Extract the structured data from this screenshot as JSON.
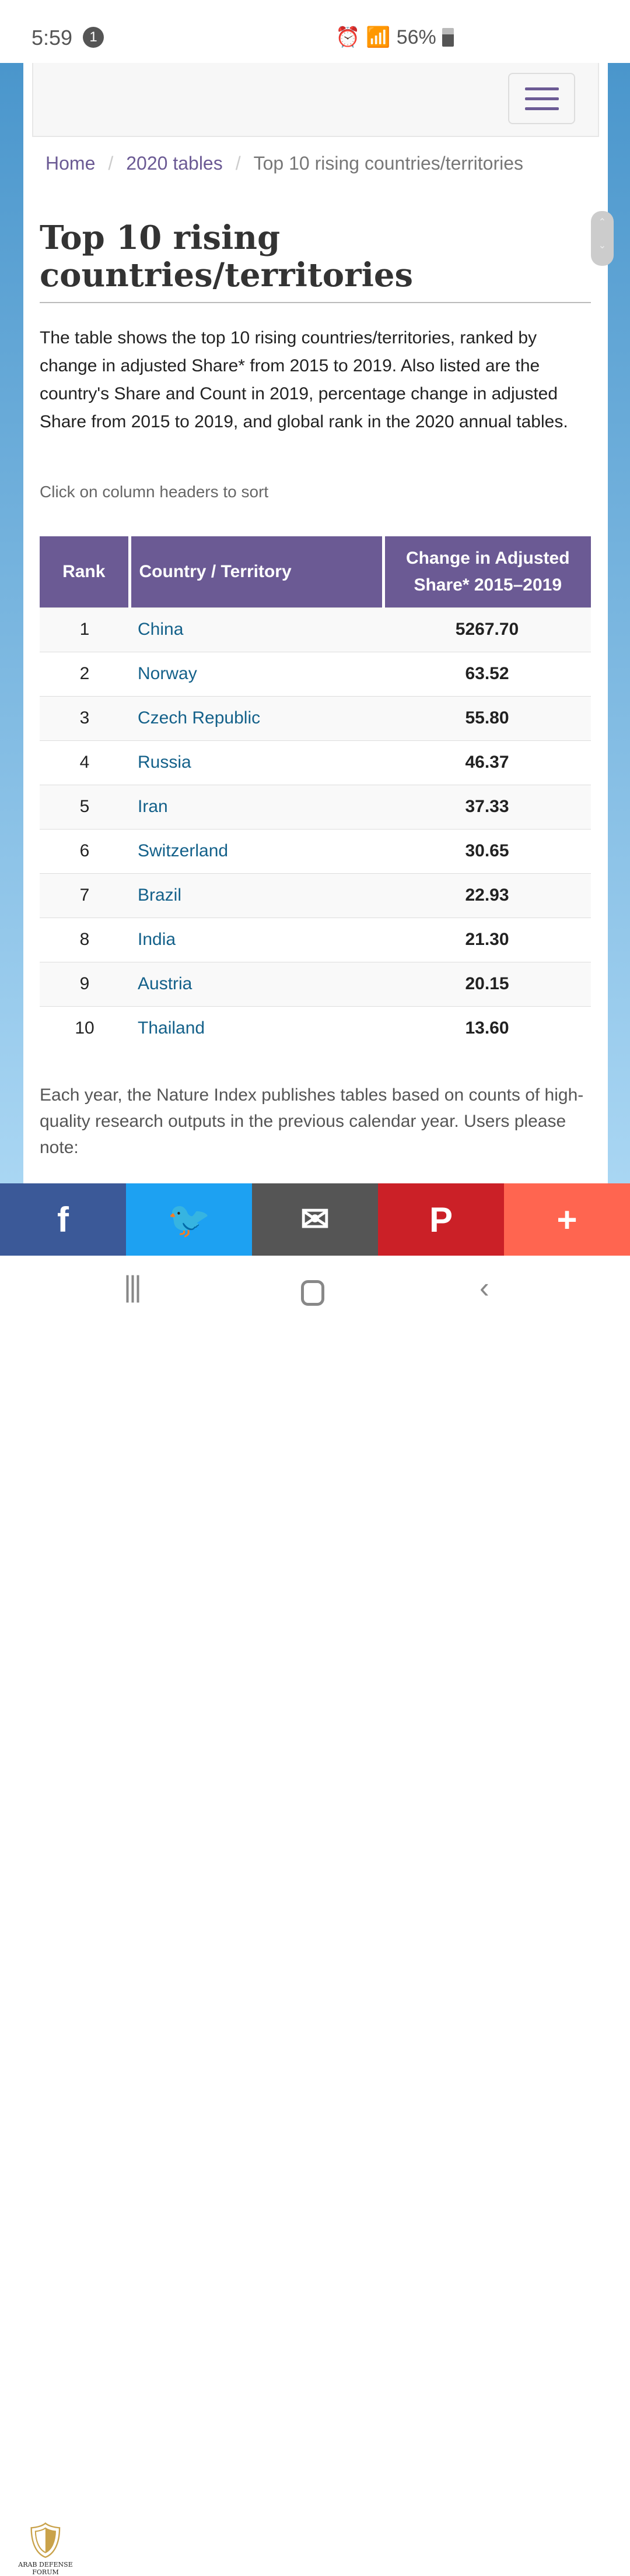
{
  "status": {
    "time": "5:59",
    "notif_count": "1",
    "battery": "56%"
  },
  "breadcrumb": [
    "Home",
    "2020 tables",
    "Top 10 rising countries/territories"
  ],
  "title": "Top 10 rising countries/territories",
  "intro": "The table shows the top 10 rising countries/territories, ranked by change in adjusted Share* from 2015 to 2019. Also listed are the country's Share and Count in 2019, percentage change in adjusted Share from 2015 to 2019, and global rank in the 2020 annual tables.",
  "hint": "Click on column headers to sort",
  "table": {
    "headers": [
      "Rank",
      "Country / Territory",
      "Change in Adjusted Share* 2015–2019"
    ],
    "rows": [
      [
        "1",
        "China",
        "5267.70"
      ],
      [
        "2",
        "Norway",
        "63.52"
      ],
      [
        "3",
        "Czech Republic",
        "55.80"
      ],
      [
        "4",
        "Russia",
        "46.37"
      ],
      [
        "5",
        "Iran",
        "37.33"
      ],
      [
        "6",
        "Switzerland",
        "30.65"
      ],
      [
        "7",
        "Brazil",
        "22.93"
      ],
      [
        "8",
        "India",
        "21.30"
      ],
      [
        "9",
        "Austria",
        "20.15"
      ],
      [
        "10",
        "Thailand",
        "13.60"
      ]
    ]
  },
  "footer": "Each year, the Nature Index publishes tables based on counts of high-quality research outputs in the previous calendar year. Users please note:",
  "share": [
    {
      "icon": "facebook-icon",
      "glyph": "f",
      "color": "#3b5998"
    },
    {
      "icon": "twitter-icon",
      "glyph": "🐦",
      "color": "#1da1f2"
    },
    {
      "icon": "email-icon",
      "glyph": "✉",
      "color": "#555555"
    },
    {
      "icon": "pinterest-icon",
      "glyph": "P",
      "color": "#cb2027"
    },
    {
      "icon": "more-icon",
      "glyph": "+",
      "color": "#ff6550"
    }
  ],
  "watermark": "ARAB DEFENSE FORUM"
}
